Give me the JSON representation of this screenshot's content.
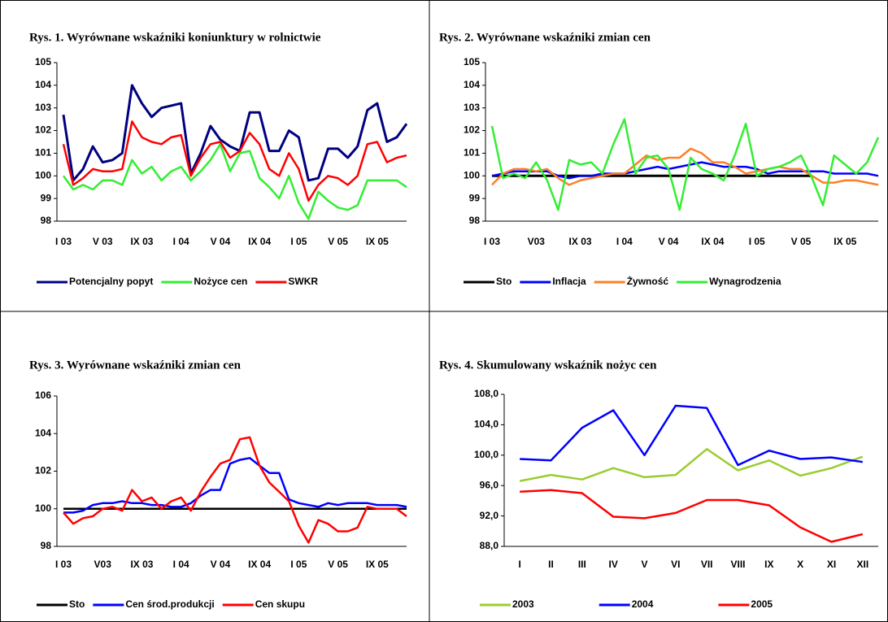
{
  "chart_data": [
    {
      "type": "line",
      "title": "Rys. 1. Wyrównane wskaźniki koniunktury w rolnictwie",
      "categories": [
        "I 03",
        null,
        null,
        null,
        "V 03",
        null,
        null,
        null,
        "IX 03",
        null,
        null,
        null,
        "I 04",
        null,
        null,
        null,
        "V 04",
        null,
        null,
        null,
        "IX 04",
        null,
        null,
        null,
        "I 05",
        null,
        null,
        null,
        "V 05",
        null,
        null,
        null,
        "IX 05",
        null,
        null,
        null
      ],
      "ylim": [
        98,
        105
      ],
      "yticks": [
        98,
        99,
        100,
        101,
        102,
        103,
        104,
        105
      ],
      "grid": false,
      "series": [
        {
          "name": "Potencjalny popyt",
          "color": "#000080",
          "values": [
            102.7,
            99.8,
            100.3,
            101.3,
            100.6,
            100.7,
            101.0,
            104.0,
            103.2,
            102.6,
            103.0,
            103.1,
            103.2,
            100.1,
            101.0,
            102.2,
            101.6,
            101.3,
            101.1,
            102.8,
            102.8,
            101.1,
            101.1,
            102.0,
            101.7,
            99.8,
            99.9,
            101.2,
            101.2,
            100.8,
            101.3,
            102.9,
            103.2,
            101.5,
            101.7,
            102.3
          ]
        },
        {
          "name": "Nożyce cen",
          "color": "#33ee33",
          "values": [
            100.0,
            99.4,
            99.6,
            99.4,
            99.8,
            99.8,
            99.6,
            100.7,
            100.1,
            100.4,
            99.8,
            100.2,
            100.4,
            99.8,
            100.2,
            100.7,
            101.4,
            100.2,
            101.0,
            101.1,
            99.9,
            99.5,
            99.0,
            100.0,
            98.8,
            98.1,
            99.3,
            98.9,
            98.6,
            98.5,
            98.7,
            99.8,
            99.8,
            99.8,
            99.8,
            99.5
          ]
        },
        {
          "name": "SWKR",
          "color": "#ff0000",
          "values": [
            101.4,
            99.6,
            99.9,
            100.3,
            100.2,
            100.2,
            100.3,
            102.4,
            101.7,
            101.5,
            101.4,
            101.7,
            101.8,
            100.0,
            100.8,
            101.4,
            101.5,
            100.8,
            101.1,
            101.9,
            101.4,
            100.3,
            100.0,
            101.0,
            100.3,
            98.9,
            99.6,
            100.0,
            99.9,
            99.6,
            100.0,
            101.4,
            101.5,
            100.6,
            100.8,
            100.9
          ]
        }
      ]
    },
    {
      "type": "line",
      "title": "Rys. 2. Wyrównane wskaźniki zmian cen",
      "categories": [
        "I 03",
        null,
        null,
        null,
        "V03",
        null,
        null,
        null,
        "IX 03",
        null,
        null,
        null,
        "I 04",
        null,
        null,
        null,
        "V 04",
        null,
        null,
        null,
        "IX 04",
        null,
        null,
        null,
        "I 05",
        null,
        null,
        null,
        "V 05",
        null,
        null,
        null,
        "IX 05",
        null,
        null,
        null
      ],
      "ylim": [
        98,
        105
      ],
      "yticks": [
        98,
        99,
        100,
        101,
        102,
        103,
        104,
        105
      ],
      "grid": false,
      "series": [
        {
          "name": "Sto",
          "color": "#000000",
          "values": [
            100,
            100,
            100,
            100,
            100,
            100,
            100,
            100,
            100,
            100,
            100,
            100,
            100,
            100,
            100,
            100,
            100,
            100,
            100,
            100,
            100,
            100,
            100,
            100,
            100,
            100,
            100,
            100,
            100,
            100,
            null,
            null,
            null,
            null,
            null,
            null
          ]
        },
        {
          "name": "Inflacja",
          "color": "#0000ff",
          "values": [
            100.0,
            100.1,
            100.2,
            100.2,
            100.2,
            100.2,
            100.0,
            99.9,
            100.0,
            100.0,
            100.1,
            100.1,
            100.1,
            100.2,
            100.3,
            100.4,
            100.3,
            100.4,
            100.5,
            100.6,
            100.5,
            100.4,
            100.4,
            100.4,
            100.3,
            100.1,
            100.2,
            100.2,
            100.2,
            100.2,
            100.2,
            100.1,
            100.1,
            100.1,
            100.1,
            100.0
          ]
        },
        {
          "name": "Żywność",
          "color": "#ff7f27",
          "values": [
            99.6,
            100.1,
            100.3,
            100.3,
            100.2,
            100.3,
            99.9,
            99.6,
            99.8,
            99.9,
            100.0,
            100.1,
            100.1,
            100.5,
            100.9,
            100.7,
            100.8,
            100.8,
            101.2,
            101.0,
            100.6,
            100.6,
            100.4,
            100.1,
            100.2,
            100.3,
            100.4,
            100.3,
            100.3,
            100.0,
            99.7,
            99.7,
            99.8,
            99.8,
            99.7,
            99.6
          ]
        },
        {
          "name": "Wynagrodzenia",
          "color": "#33ee33",
          "values": [
            102.2,
            99.9,
            100.1,
            99.9,
            100.6,
            99.8,
            98.5,
            100.7,
            100.5,
            100.6,
            100.1,
            101.4,
            102.5,
            100.1,
            100.8,
            100.9,
            100.3,
            98.5,
            100.8,
            100.3,
            100.1,
            99.8,
            100.9,
            102.3,
            100.0,
            100.3,
            100.4,
            100.6,
            100.9,
            99.9,
            98.7,
            100.9,
            100.5,
            100.1,
            100.6,
            101.7
          ]
        }
      ]
    },
    {
      "type": "line",
      "title": "Rys. 3. Wyrównane wskaźniki zmian cen",
      "categories": [
        "I 03",
        null,
        null,
        null,
        "V03",
        null,
        null,
        null,
        "IX 03",
        null,
        null,
        null,
        "I 04",
        null,
        null,
        null,
        "V 04",
        null,
        null,
        null,
        "IX 04",
        null,
        null,
        null,
        "I 05",
        null,
        null,
        null,
        "V 05",
        null,
        null,
        null,
        "IX 05",
        null,
        null,
        null
      ],
      "ylim": [
        98,
        106
      ],
      "yticks": [
        98,
        100,
        102,
        104,
        106
      ],
      "grid": false,
      "series": [
        {
          "name": "Sto",
          "color": "#000000",
          "values": [
            100,
            100,
            100,
            100,
            100,
            100,
            100,
            100,
            100,
            100,
            100,
            100,
            100,
            100,
            100,
            100,
            100,
            100,
            100,
            100,
            100,
            100,
            100,
            100,
            100,
            100,
            100,
            100,
            100,
            100,
            100,
            100,
            100,
            100,
            100,
            100
          ]
        },
        {
          "name": "Cen środ.produkcji",
          "color": "#0000ff",
          "values": [
            99.8,
            99.8,
            99.9,
            100.2,
            100.3,
            100.3,
            100.4,
            100.3,
            100.3,
            100.2,
            100.2,
            100.1,
            100.1,
            100.3,
            100.7,
            101.0,
            101.0,
            102.4,
            102.6,
            102.7,
            102.3,
            101.9,
            101.9,
            100.5,
            100.3,
            100.2,
            100.1,
            100.3,
            100.2,
            100.3,
            100.3,
            100.3,
            100.2,
            100.2,
            100.2,
            100.1
          ]
        },
        {
          "name": "Cen skupu",
          "color": "#ff0000",
          "values": [
            99.8,
            99.2,
            99.5,
            99.6,
            100.0,
            100.1,
            99.9,
            101.0,
            100.4,
            100.6,
            100.0,
            100.4,
            100.6,
            99.9,
            100.9,
            101.7,
            102.4,
            102.6,
            103.7,
            103.8,
            102.3,
            101.4,
            100.9,
            100.4,
            99.1,
            98.2,
            99.4,
            99.2,
            98.8,
            98.8,
            99.0,
            100.1,
            100.0,
            100.0,
            100.0,
            99.6
          ]
        }
      ]
    },
    {
      "type": "line",
      "title": "Rys. 4. Skumulowany wskaźnik nożyc cen",
      "categories": [
        "I",
        "II",
        "III",
        "IV",
        "V",
        "VI",
        "VII",
        "VIII",
        "IX",
        "X",
        "XI",
        "XII"
      ],
      "ylim": [
        88,
        108
      ],
      "yticks": [
        {
          "value": 88,
          "label": "88,0"
        },
        {
          "value": 92,
          "label": "92,0"
        },
        {
          "value": 96,
          "label": "96,0"
        },
        {
          "value": 100,
          "label": "100,0"
        },
        {
          "value": 104,
          "label": "104,0"
        },
        {
          "value": 108,
          "label": "108,0"
        }
      ],
      "grid": false,
      "series": [
        {
          "name": "2003",
          "color": "#9acd32",
          "values": [
            96.6,
            97.4,
            96.8,
            98.3,
            97.1,
            97.4,
            100.8,
            98.0,
            99.3,
            97.3,
            98.3,
            99.8
          ]
        },
        {
          "name": "2004",
          "color": "#0000ff",
          "values": [
            99.5,
            99.3,
            103.6,
            105.9,
            100.0,
            106.5,
            106.2,
            98.7,
            100.6,
            99.5,
            99.7,
            99.1
          ]
        },
        {
          "name": "2005",
          "color": "#ff0000",
          "values": [
            95.2,
            95.4,
            95.0,
            91.9,
            91.7,
            92.4,
            94.1,
            94.1,
            93.4,
            90.5,
            88.6,
            89.6
          ]
        }
      ]
    }
  ]
}
